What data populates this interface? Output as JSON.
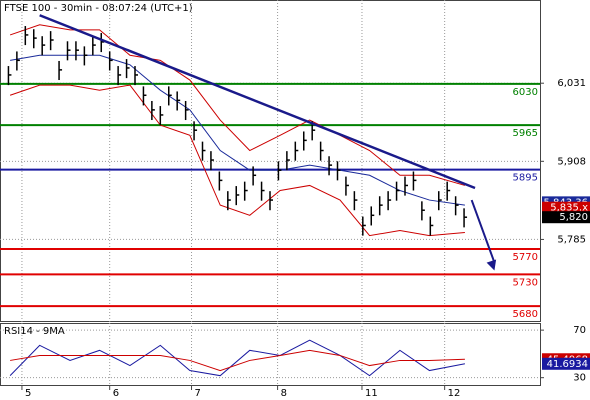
{
  "chart_data": [
    {
      "type": "ohlc",
      "title": "FTSE 100 - 30min - 08:07:24 (UTC+1)",
      "color": "#000000",
      "x": [
        1,
        2,
        3,
        4,
        5,
        6,
        7,
        8,
        9,
        10,
        11,
        12,
        13,
        14,
        15,
        16,
        17,
        18,
        19,
        20,
        21,
        22,
        23,
        24,
        25,
        26,
        27,
        28,
        29,
        30,
        31,
        32,
        33,
        34,
        35,
        36,
        37,
        38,
        39,
        40,
        41,
        42,
        43,
        44,
        45,
        46,
        47,
        48,
        49,
        50,
        51,
        52,
        53,
        54,
        55
      ],
      "high": [
        6058,
        6081,
        6121,
        6116,
        6105,
        6113,
        6066,
        6097,
        6097,
        6089,
        6105,
        6110,
        6081,
        6058,
        6069,
        6058,
        6026,
        6003,
        5995,
        6026,
        6018,
        6003,
        5971,
        5939,
        5924,
        5892,
        5861,
        5869,
        5876,
        5900,
        5876,
        5861,
        5908,
        5924,
        5939,
        5955,
        5971,
        5939,
        5916,
        5908,
        5884,
        5861,
        5821,
        5837,
        5853,
        5861,
        5876,
        5884,
        5892,
        5845,
        5821,
        5861,
        5876,
        5853,
        5834
      ],
      "low": [
        6028,
        6051,
        6091,
        6086,
        6075,
        6083,
        6036,
        6067,
        6067,
        6059,
        6075,
        6080,
        6051,
        6028,
        6039,
        6028,
        5996,
        5973,
        5965,
        5996,
        5988,
        5973,
        5941,
        5909,
        5894,
        5862,
        5831,
        5839,
        5846,
        5870,
        5846,
        5831,
        5878,
        5894,
        5909,
        5925,
        5941,
        5909,
        5886,
        5878,
        5854,
        5831,
        5791,
        5807,
        5823,
        5831,
        5846,
        5854,
        5862,
        5815,
        5791,
        5831,
        5846,
        5823,
        5804
      ],
      "close": [
        6044,
        6067,
        6107,
        6102,
        6091,
        6099,
        6052,
        6083,
        6083,
        6075,
        6091,
        6096,
        6067,
        6044,
        6055,
        6044,
        6012,
        5989,
        5981,
        6012,
        6004,
        5989,
        5957,
        5925,
        5910,
        5878,
        5847,
        5855,
        5862,
        5886,
        5862,
        5847,
        5894,
        5910,
        5925,
        5941,
        5957,
        5925,
        5902,
        5894,
        5870,
        5847,
        5807,
        5823,
        5839,
        5847,
        5862,
        5870,
        5878,
        5831,
        5807,
        5847,
        5862,
        5839,
        5820
      ],
      "bands": {
        "x": [
          1.2,
          4.7,
          8.3,
          11.8,
          15.4,
          19,
          22.5,
          26.1,
          29.6,
          33.2,
          36.7,
          40.3,
          43.8,
          47.4,
          50.9,
          55.1
        ],
        "upper": [
          6107,
          6123,
          6115,
          6115,
          6075,
          6067,
          6036,
          5973,
          5925,
          5949,
          5973,
          5949,
          5925,
          5886,
          5886,
          5870
        ],
        "lower": [
          6012,
          6028,
          6028,
          6020,
          6028,
          5965,
          5949,
          5839,
          5823,
          5862,
          5870,
          5847,
          5791,
          5799,
          5791,
          5796
        ],
        "middle": [
          6067,
          6075,
          6075,
          6075,
          6060,
          6020,
          5989,
          5925,
          5894,
          5894,
          5902,
          5894,
          5886,
          5862,
          5847,
          5839
        ],
        "band_color": "#cc0000",
        "middle_color": "#1a2a9a"
      },
      "levels": [
        {
          "value": 6030,
          "color": "#008000"
        },
        {
          "value": 5965,
          "color": "#008000"
        },
        {
          "value": 5895,
          "color": "#1a1aa0"
        },
        {
          "value": 5770,
          "color": "#e00000"
        },
        {
          "value": 5730,
          "color": "#e00000"
        },
        {
          "value": 5680,
          "color": "#e00000"
        }
      ],
      "trendline": {
        "x": [
          4.7,
          56.3
        ],
        "y": [
          6138,
          5866
        ],
        "color": "#1a1a8a"
      },
      "arrow": {
        "x": [
          55.9,
          58.6
        ],
        "y": [
          5847,
          5736
        ],
        "color": "#1a1a8a"
      },
      "price_labels": [
        {
          "value": 5843.36,
          "label": "5,843.36",
          "color": "#1a2a9a"
        },
        {
          "value": 5835,
          "label": "5,835.x",
          "color": "#cc0000"
        },
        {
          "value": 5820,
          "label": "5,820",
          "color": "#000000"
        }
      ],
      "xlim": [
        0,
        64
      ],
      "ylim": [
        5655,
        6162
      ],
      "yticks": [
        {
          "value": 6031,
          "label": "6,031"
        },
        {
          "value": 5908,
          "label": "5,908"
        },
        {
          "value": 5785,
          "label": "5,785"
        }
      ],
      "grid": true
    },
    {
      "type": "line",
      "title": "RSI14 - 9MA",
      "x": [
        1.2,
        4.7,
        8.3,
        11.8,
        15.4,
        19,
        22.5,
        26.1,
        29.6,
        33.2,
        36.7,
        40.3,
        43.8,
        47.4,
        50.9,
        55.1
      ],
      "series": [
        {
          "color": "#1a1aa0",
          "values": [
            31.7,
            57.2,
            44.5,
            53,
            40.2,
            57.2,
            36,
            31.7,
            53,
            48.7,
            61.5,
            48.7,
            31.7,
            53,
            36,
            41.6934
          ]
        },
        {
          "color": "#cc0000",
          "values": [
            44.5,
            48.7,
            48.7,
            48.7,
            48.7,
            48.7,
            44.5,
            36,
            44.5,
            48.7,
            53,
            48.7,
            40.2,
            44.5,
            44.5,
            45.4968
          ]
        }
      ],
      "value_labels": [
        {
          "value": 45.4968,
          "label": "45.4968",
          "color": "#cc0000"
        },
        {
          "value": 41.6934,
          "label": "41.6934",
          "color": "#1a1aa0"
        }
      ],
      "xlim": [
        0,
        64
      ],
      "ylim": [
        23,
        76
      ],
      "yticks": [
        70,
        30
      ],
      "xticks": [
        {
          "value": 2.6,
          "label": "5"
        },
        {
          "value": 13,
          "label": "6"
        },
        {
          "value": 22.7,
          "label": "7"
        },
        {
          "value": 32.9,
          "label": "8"
        },
        {
          "value": 42.9,
          "label": "11"
        },
        {
          "value": 52.7,
          "label": "12"
        }
      ],
      "grid": true
    }
  ]
}
